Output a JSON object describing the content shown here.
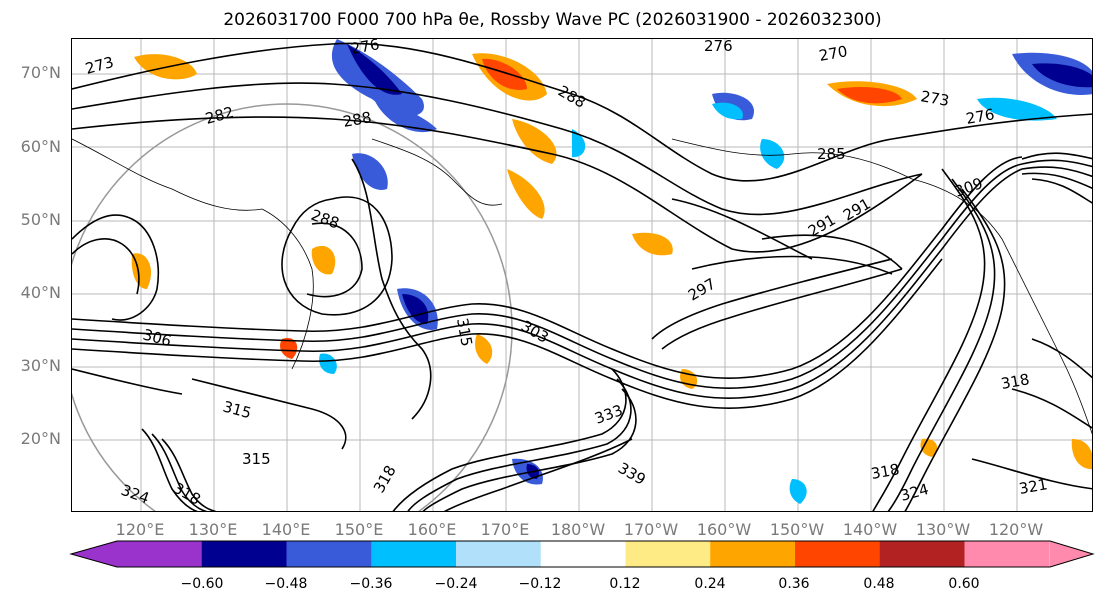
{
  "title": "2026031700 F000 700 hPa θe, Rossby Wave PC (2026031900 - 2026032300)",
  "lat_labels": [
    "70°N",
    "60°N",
    "50°N",
    "40°N",
    "30°N",
    "20°N"
  ],
  "lon_labels": [
    "120°E",
    "130°E",
    "140°E",
    "150°E",
    "160°E",
    "170°E",
    "180°W",
    "170°W",
    "160°W",
    "150°W",
    "140°W",
    "130°W",
    "120°W"
  ],
  "contour_labels": [
    "273",
    "276",
    "270",
    "276",
    "273",
    "282",
    "288",
    "288",
    "285",
    "276",
    "291",
    "291",
    "288",
    "297",
    "309",
    "303",
    "306",
    "315",
    "318",
    "315",
    "324",
    "318",
    "324",
    "321",
    "333",
    "339",
    "315",
    "318",
    "318"
  ],
  "colorbar": {
    "ticks": [
      "−0.60",
      "−0.48",
      "−0.36",
      "−0.24",
      "−0.12",
      "0.12",
      "0.24",
      "0.36",
      "0.48",
      "0.60"
    ],
    "colors": [
      "#9933cc",
      "#000090",
      "#3a5bd9",
      "#00bfff",
      "#b0e0fa",
      "#ffffff",
      "#ffeb85",
      "#ffa500",
      "#ff4500",
      "#b22222",
      "#ff8aad"
    ]
  }
}
